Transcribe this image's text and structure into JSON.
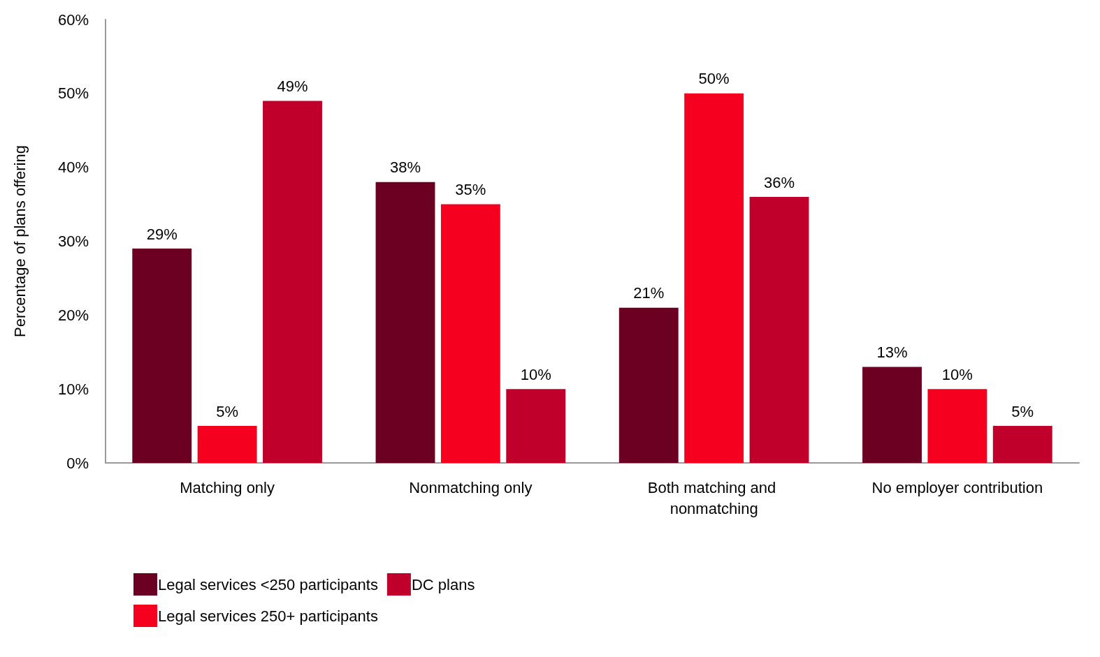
{
  "chart_data": {
    "type": "bar",
    "ylabel": "Percentage of plans offering",
    "categories": [
      "Matching only",
      "Nonmatching only",
      "Both matching and nonmatching",
      "No employer contribution"
    ],
    "series": [
      {
        "name": "Legal services <250 participants",
        "color": "#6b0023",
        "values": [
          29,
          38,
          21,
          13
        ],
        "value_labels": [
          "29%",
          "38%",
          "21%",
          "13%"
        ]
      },
      {
        "name": "Legal services 250+ participants",
        "color": "#f5001e",
        "values": [
          5,
          35,
          50,
          10
        ],
        "value_labels": [
          "5%",
          "35%",
          "50%",
          "10%"
        ]
      },
      {
        "name": "DC plans",
        "color": "#c0002a",
        "values": [
          49,
          10,
          36,
          5
        ],
        "value_labels": [
          "49%",
          "10%",
          "36%",
          "5%"
        ]
      }
    ],
    "ylim": [
      0,
      60
    ],
    "yticks": [
      {
        "value": 0,
        "label": "0%"
      },
      {
        "value": 10,
        "label": "10%"
      },
      {
        "value": 20,
        "label": "20%"
      },
      {
        "value": 30,
        "label": "30%"
      },
      {
        "value": 40,
        "label": "40%"
      },
      {
        "value": 50,
        "label": "50%"
      },
      {
        "value": 60,
        "label": "60%"
      }
    ],
    "grid": false,
    "legend": "bottom left"
  }
}
